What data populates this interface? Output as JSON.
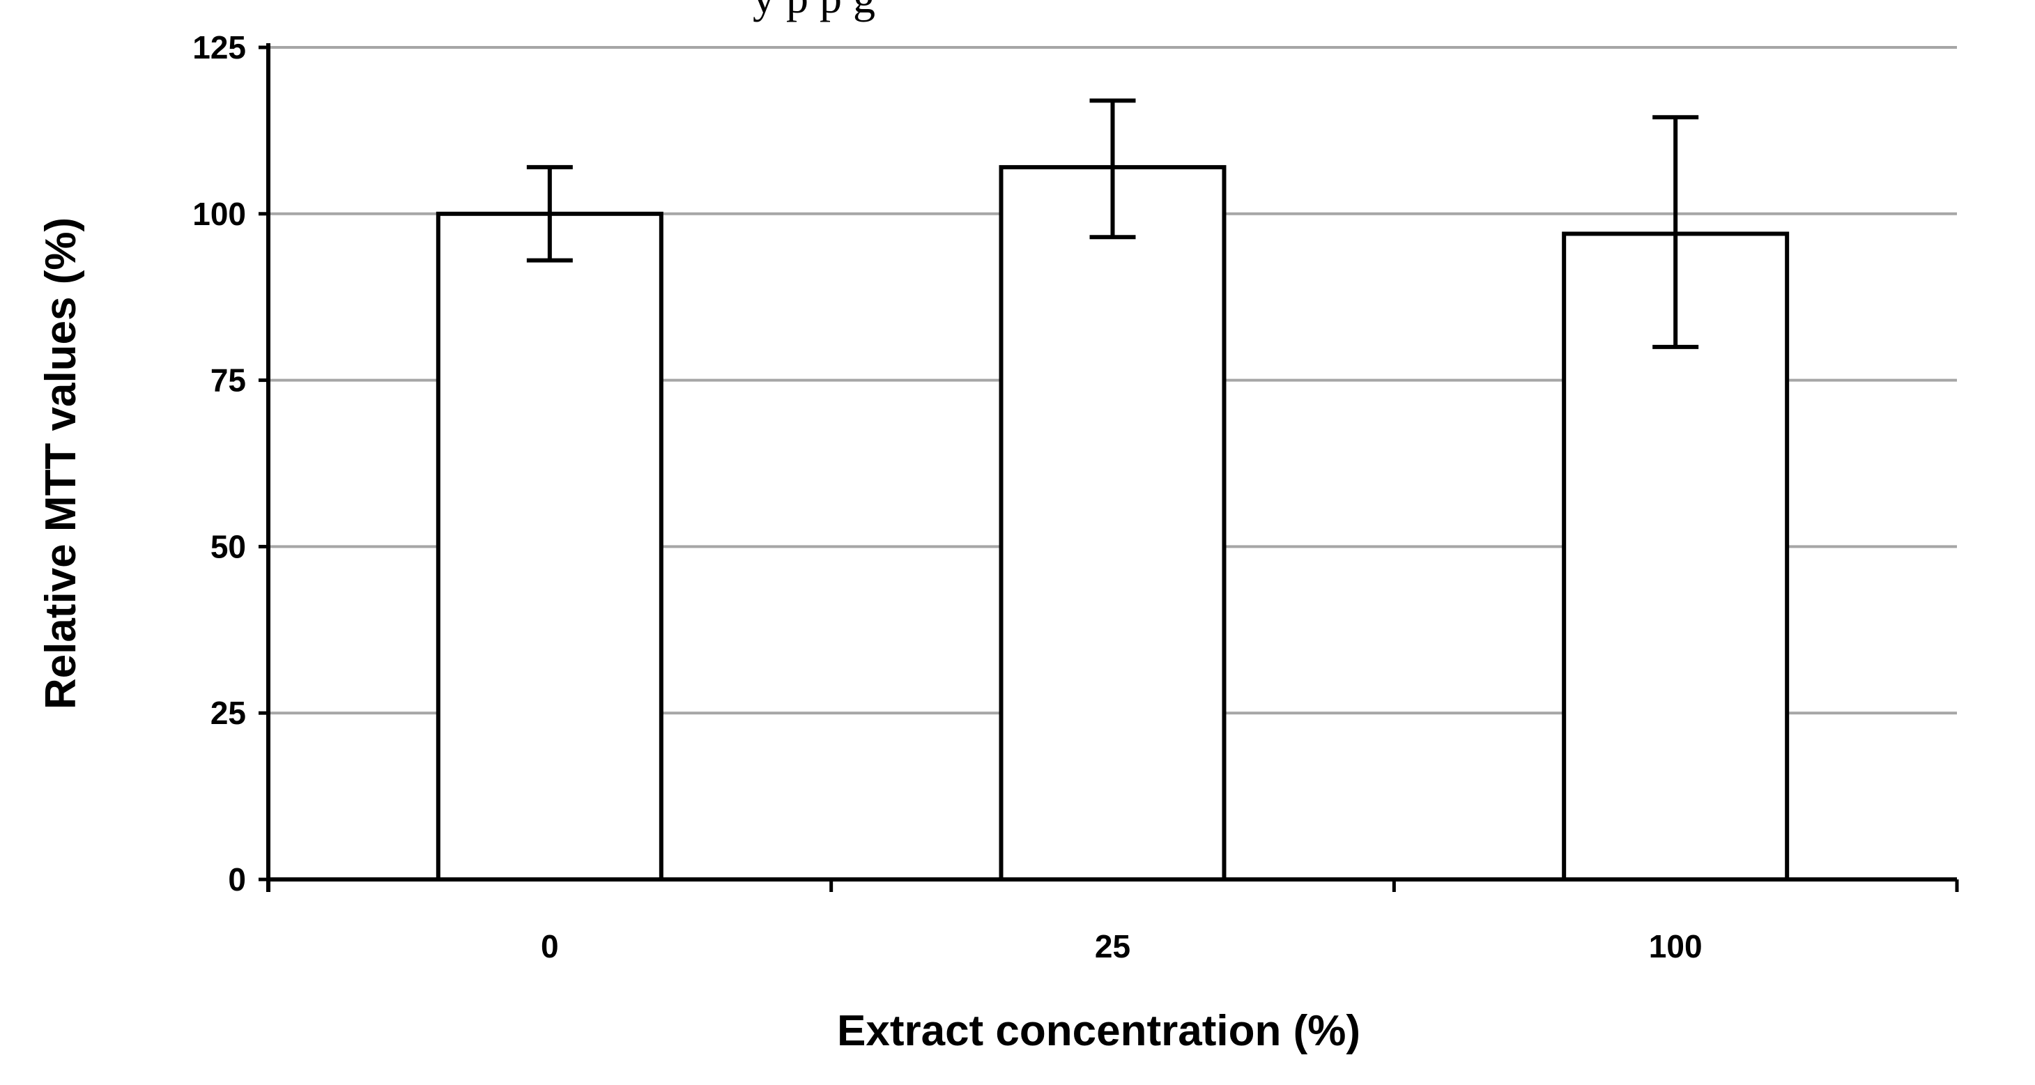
{
  "caption_fragment": "y p                    p                      g",
  "chart_data": {
    "type": "bar",
    "categories": [
      "0",
      "25",
      "100"
    ],
    "values": [
      100,
      107,
      97
    ],
    "error_bars": [
      {
        "low": 93,
        "high": 107
      },
      {
        "low": 96.5,
        "high": 117
      },
      {
        "low": 80,
        "high": 114.5
      }
    ],
    "xlabel": "Extract concentration (%)",
    "ylabel": "Relative MTT values (%)",
    "ylim": [
      0,
      125
    ],
    "yticks": [
      0,
      25,
      50,
      75,
      100,
      125
    ],
    "ytick_labels": [
      "0",
      "25",
      "50",
      "75",
      "100",
      "125"
    ],
    "grid": true,
    "legend": "none",
    "colors": {
      "bar_fill": "#ffffff",
      "bar_stroke": "#000000",
      "gridline": "#a6a6a6",
      "axis": "#000000",
      "error_bar": "#000000"
    }
  }
}
